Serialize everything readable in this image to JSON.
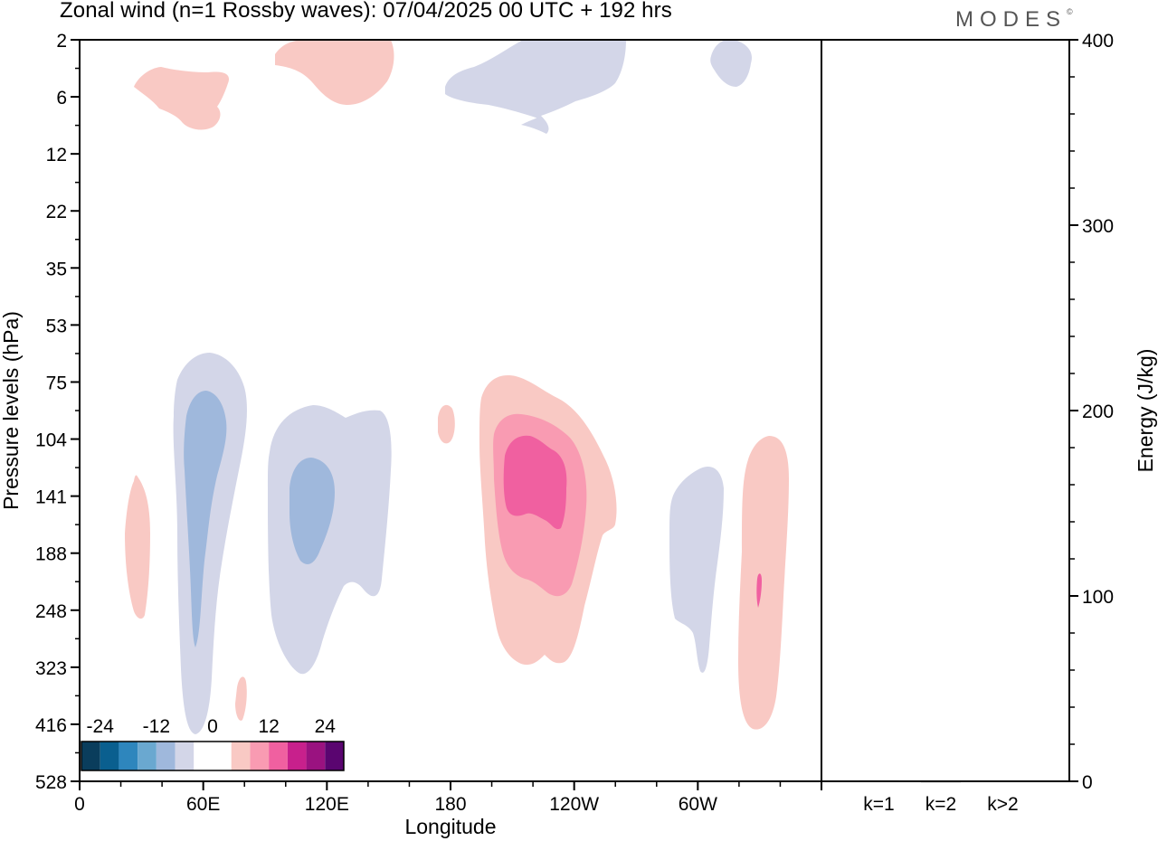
{
  "title": "Zonal wind (n=1 Rossby waves):  07/04/2025  00 UTC  + 192 hrs",
  "logo": {
    "text": "MODES",
    "mark": "©"
  },
  "chart_data": [
    {
      "type": "heatmap",
      "xlabel": "Longitude",
      "ylabel": "Pressure levels (hPa)",
      "x_ticks": [
        "0",
        "60E",
        "120E",
        "180",
        "120W",
        "60W"
      ],
      "y_ticks": [
        "2",
        "6",
        "12",
        "22",
        "35",
        "53",
        "75",
        "104",
        "141",
        "188",
        "248",
        "323",
        "416",
        "528"
      ],
      "x_range_deg_east": [
        0,
        360
      ],
      "y_range_hpa": [
        2,
        528
      ],
      "colorbar": {
        "labels": [
          "-24",
          "-12",
          "0",
          "12",
          "24"
        ],
        "levels": [
          -24,
          -20,
          -16,
          -12,
          -8,
          -4,
          0,
          4,
          8,
          12,
          16,
          20,
          24
        ],
        "colors": [
          "#0a3d5c",
          "#0a5f8f",
          "#2e86bd",
          "#6aa8d0",
          "#9fb8dc",
          "#d3d6e8",
          "#ffffff",
          "#ffffff",
          "#f9c9c4",
          "#f99bb2",
          "#f060a0",
          "#c8208c",
          "#9a1280",
          "#5a0570"
        ]
      }
    },
    {
      "type": "bar",
      "ylabel": "Energy (J/kg)",
      "categories": [
        "k=1",
        "k=2",
        "k>2"
      ],
      "values": [
        0.5,
        0.2,
        0.3
      ],
      "ylim": [
        0,
        400
      ],
      "y_ticks": [
        "0",
        "100",
        "200",
        "300",
        "400"
      ]
    }
  ]
}
